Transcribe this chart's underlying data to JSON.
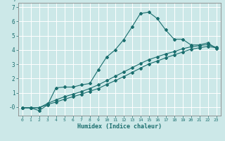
{
  "title": "",
  "xlabel": "Humidex (Indice chaleur)",
  "background_color": "#cce8e8",
  "grid_color": "#ffffff",
  "line_color": "#1a6e6e",
  "xlim": [
    -0.5,
    23.5
  ],
  "ylim": [
    -0.6,
    7.3
  ],
  "xticks": [
    0,
    1,
    2,
    3,
    4,
    5,
    6,
    7,
    8,
    9,
    10,
    11,
    12,
    13,
    14,
    15,
    16,
    17,
    18,
    19,
    20,
    21,
    22,
    23
  ],
  "yticks": [
    0,
    1,
    2,
    3,
    4,
    5,
    6,
    7
  ],
  "ytick_labels": [
    "-0",
    "1",
    "2",
    "3",
    "4",
    "5",
    "6",
    "7"
  ],
  "line1_x": [
    0,
    1,
    2,
    3,
    4,
    5,
    6,
    7,
    8,
    9,
    10,
    11,
    12,
    13,
    14,
    15,
    16,
    17,
    18,
    19,
    20,
    21,
    22,
    23
  ],
  "line1_y": [
    -0.05,
    -0.05,
    -0.25,
    0.15,
    1.35,
    1.4,
    1.4,
    1.55,
    1.65,
    2.6,
    3.5,
    4.0,
    4.7,
    5.6,
    6.55,
    6.65,
    6.2,
    5.4,
    4.75,
    4.75,
    4.35,
    4.35,
    4.5,
    4.1
  ],
  "line2_x": [
    0,
    1,
    2,
    3,
    4,
    5,
    6,
    7,
    8,
    9,
    10,
    11,
    12,
    13,
    14,
    15,
    16,
    17,
    18,
    19,
    20,
    21,
    22,
    23
  ],
  "line2_y": [
    -0.05,
    -0.05,
    -0.05,
    0.18,
    0.35,
    0.55,
    0.72,
    0.9,
    1.1,
    1.3,
    1.58,
    1.85,
    2.12,
    2.42,
    2.72,
    3.02,
    3.22,
    3.45,
    3.65,
    3.85,
    4.05,
    4.15,
    4.25,
    4.15
  ],
  "line3_x": [
    0,
    1,
    2,
    3,
    4,
    5,
    6,
    7,
    8,
    9,
    10,
    11,
    12,
    13,
    14,
    15,
    16,
    17,
    18,
    19,
    20,
    21,
    22,
    23
  ],
  "line3_y": [
    -0.05,
    -0.05,
    -0.05,
    0.25,
    0.5,
    0.72,
    0.9,
    1.08,
    1.3,
    1.55,
    1.85,
    2.15,
    2.45,
    2.75,
    3.05,
    3.32,
    3.52,
    3.72,
    3.88,
    4.08,
    4.22,
    4.3,
    4.38,
    4.18
  ]
}
